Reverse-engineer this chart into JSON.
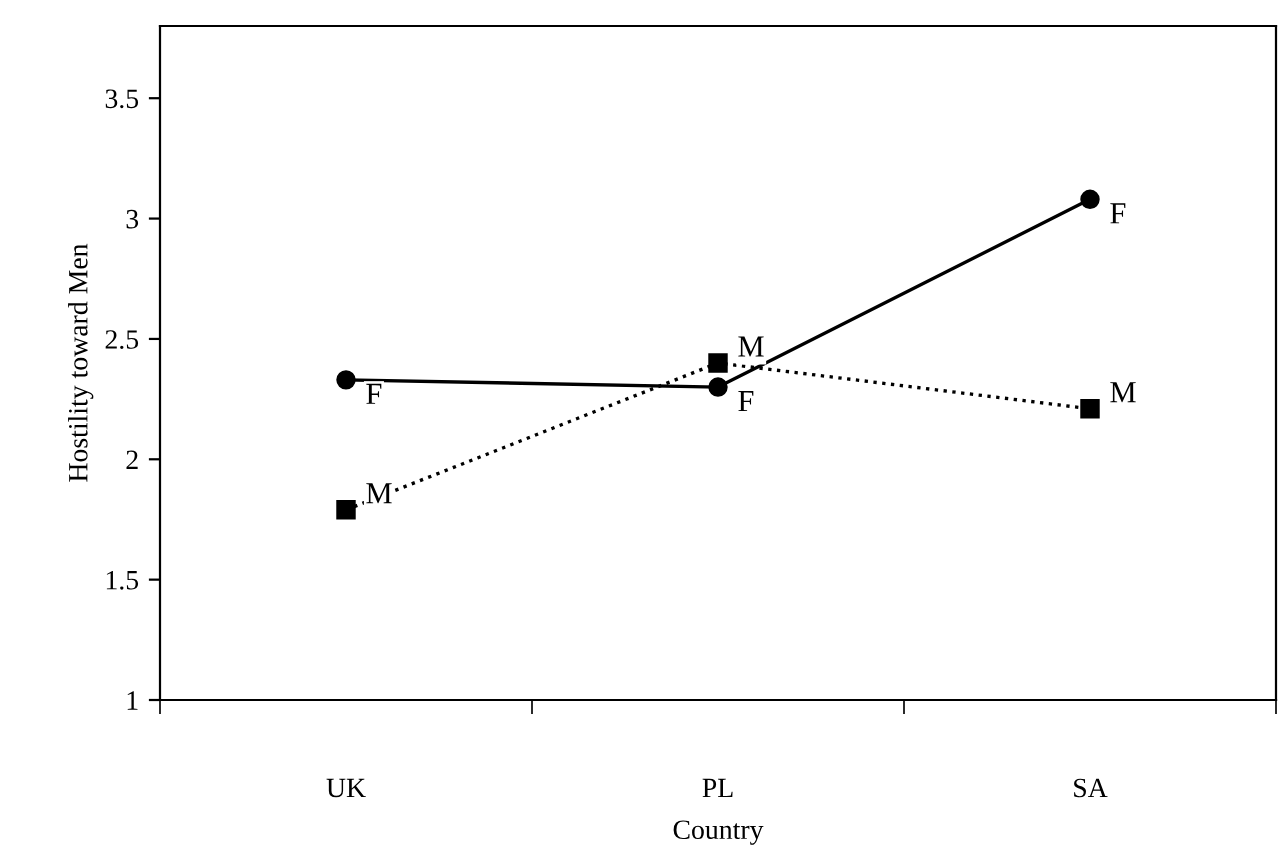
{
  "chart_data": {
    "type": "line",
    "xlabel": "Country",
    "ylabel": "Hostility toward Men",
    "categories": [
      "UK",
      "PL",
      "SA"
    ],
    "series": [
      {
        "name": "F",
        "color": "#000000",
        "values": [
          2.33,
          2.3,
          3.08
        ],
        "marker": "circle",
        "line_style": "solid"
      },
      {
        "name": "M",
        "color": "#000000",
        "values": [
          1.79,
          2.4,
          2.21
        ],
        "marker": "square",
        "line_style": "dotted"
      }
    ],
    "ylim": [
      1,
      3.8
    ],
    "yticks": [
      1,
      1.5,
      2,
      2.5,
      3,
      3.5
    ],
    "grid": false,
    "legend": false
  }
}
